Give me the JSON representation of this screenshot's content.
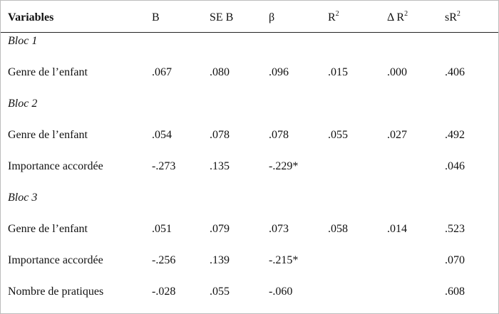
{
  "table": {
    "header": [
      {
        "text": "Variables"
      },
      {
        "text": "B"
      },
      {
        "text": "SE B"
      },
      {
        "text": "β"
      },
      {
        "text": "R",
        "sup": "2"
      },
      {
        "text": "Δ R",
        "sup": "2"
      },
      {
        "text": "sR",
        "sup": "2"
      }
    ],
    "blocks": [
      {
        "title": "Bloc 1",
        "rows": [
          [
            "Genre de l’enfant",
            ".067",
            ".080",
            ".096",
            ".015",
            ".000",
            ".406"
          ]
        ]
      },
      {
        "title": "Bloc 2",
        "rows": [
          [
            "Genre de l’enfant",
            ".054",
            ".078",
            ".078",
            ".055",
            ".027",
            ".492"
          ],
          [
            "Importance accordée",
            "-.273",
            ".135",
            "-.229*",
            null,
            null,
            ".046"
          ]
        ]
      },
      {
        "title": "Bloc 3",
        "rows": [
          [
            "Genre de l’enfant",
            ".051",
            ".079",
            ".073",
            ".058",
            ".014",
            ".523"
          ],
          [
            "Importance accordée",
            "-.256",
            ".139",
            "-.215*",
            null,
            null,
            ".070"
          ],
          [
            "Nombre de pratiques",
            "-.028",
            ".055",
            "-.060",
            null,
            null,
            ".608"
          ]
        ]
      }
    ]
  }
}
